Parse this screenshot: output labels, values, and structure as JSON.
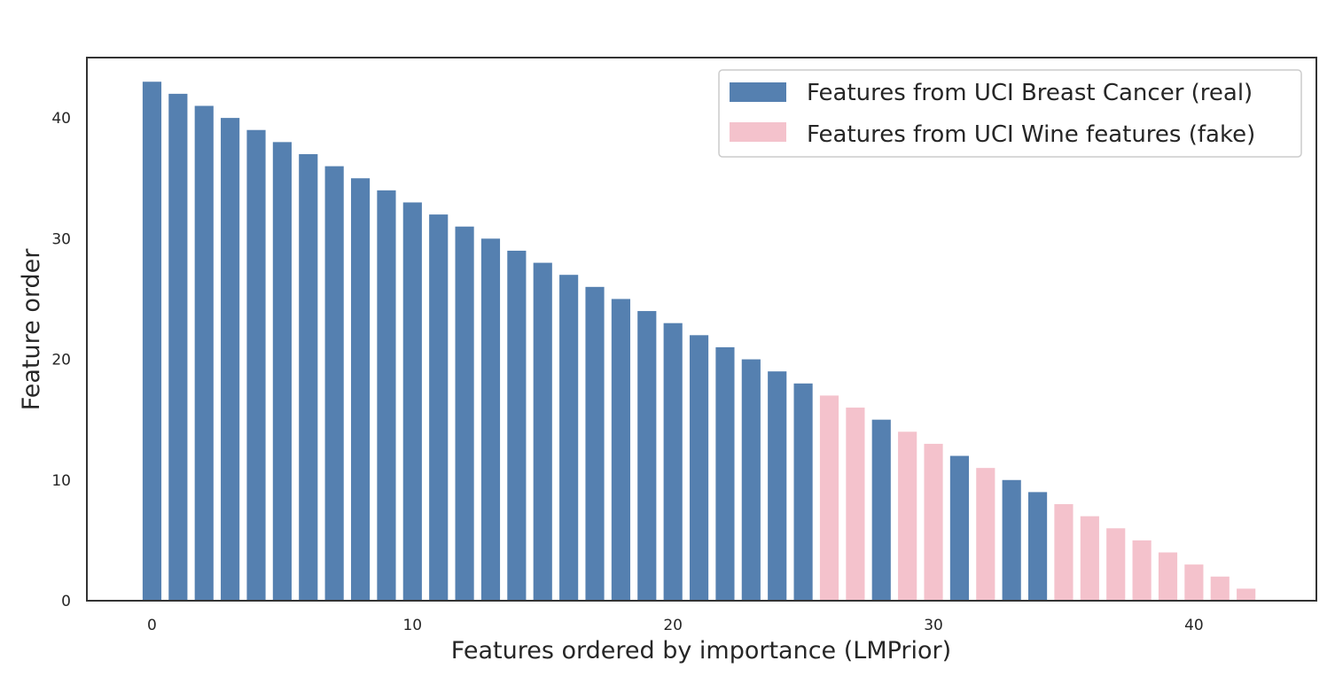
{
  "chart_data": {
    "type": "bar",
    "xlabel": "Features ordered by importance (LMPrior)",
    "ylabel": "Feature order",
    "xlim": [
      -2.5,
      44.7
    ],
    "ylim": [
      0,
      45
    ],
    "xticks": [
      0,
      10,
      20,
      30,
      40
    ],
    "yticks": [
      0,
      10,
      20,
      30,
      40
    ],
    "grid": false,
    "legend_position": "top-right",
    "series": [
      {
        "name": "Features from UCI Breast Cancer (real)",
        "color": "#5580b0",
        "x": [
          0,
          1,
          2,
          3,
          4,
          5,
          6,
          7,
          8,
          9,
          10,
          11,
          12,
          13,
          14,
          15,
          16,
          17,
          18,
          19,
          20,
          21,
          22,
          23,
          24,
          25,
          28,
          31,
          33,
          34
        ],
        "values": [
          43,
          42,
          41,
          40,
          39,
          38,
          37,
          36,
          35,
          34,
          33,
          32,
          31,
          30,
          29,
          28,
          27,
          26,
          25,
          24,
          23,
          22,
          21,
          20,
          19,
          18,
          15,
          12,
          10,
          9
        ]
      },
      {
        "name": "Features from UCI Wine features (fake)",
        "color": "#f4c2cc",
        "x": [
          26,
          27,
          29,
          30,
          32,
          35,
          36,
          37,
          38,
          39,
          40,
          41,
          42
        ],
        "values": [
          17,
          16,
          14,
          13,
          11,
          8,
          7,
          6,
          5,
          4,
          3,
          2,
          1
        ]
      }
    ]
  }
}
